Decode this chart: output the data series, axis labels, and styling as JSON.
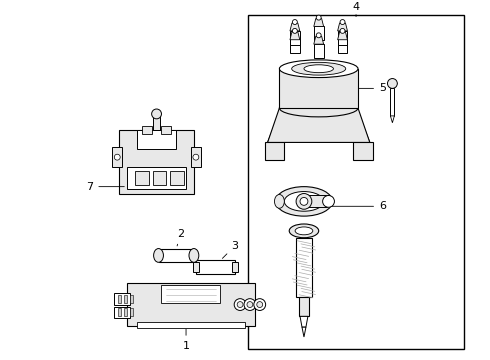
{
  "background_color": "#ffffff",
  "line_color": "#000000",
  "fig_width": 4.9,
  "fig_height": 3.6,
  "dpi": 100,
  "gray_light": "#e8e8e8",
  "gray_mid": "#aaaaaa",
  "gray_dark": "#555555",
  "gray_fill": "#d0d0d0"
}
